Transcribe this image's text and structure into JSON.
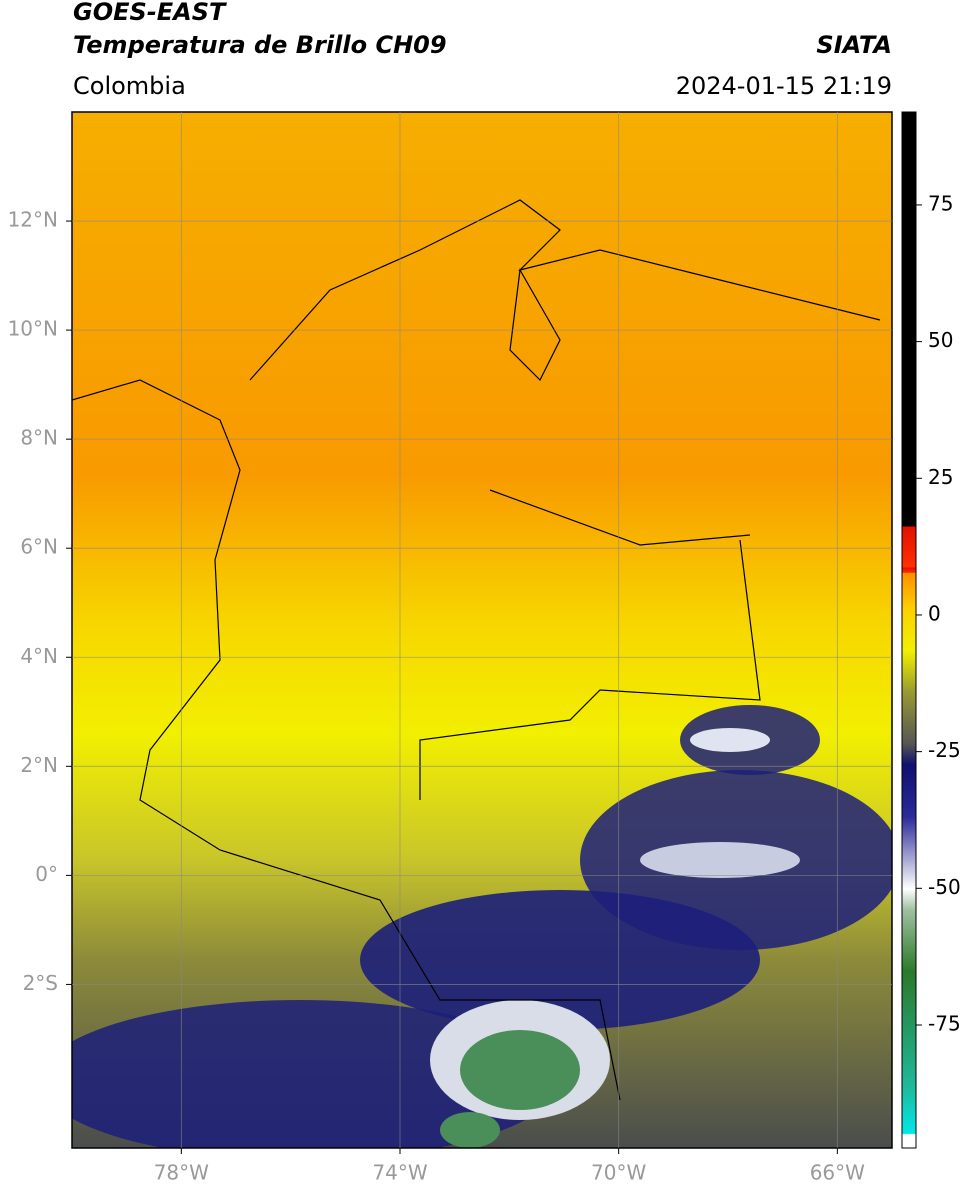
{
  "header": {
    "title": "GOES-EAST",
    "subtitle": "Temperatura de Brillo CH09",
    "source": "SIATA",
    "region": "Colombia",
    "datetime": "2024-01-15 21:19"
  },
  "map": {
    "xlim": [
      -80,
      -65
    ],
    "ylim": [
      -5,
      14
    ],
    "xticks": [
      {
        "value": -78,
        "label": "78°W"
      },
      {
        "value": -74,
        "label": "74°W"
      },
      {
        "value": -70,
        "label": "70°W"
      },
      {
        "value": -66,
        "label": "66°W"
      }
    ],
    "yticks": [
      {
        "value": 12,
        "label": "12°N"
      },
      {
        "value": 10,
        "label": "10°N"
      },
      {
        "value": 8,
        "label": "8°N"
      },
      {
        "value": 6,
        "label": "6°N"
      },
      {
        "value": 4,
        "label": "4°N"
      },
      {
        "value": 2,
        "label": "2°N"
      },
      {
        "value": 0,
        "label": "0°"
      },
      {
        "value": -2,
        "label": "2°S"
      }
    ],
    "grid": true
  },
  "colorbar": {
    "lim": [
      -97.5,
      92
    ],
    "ticks": [
      75,
      50,
      25,
      0,
      -25,
      -50,
      -75
    ]
  }
}
